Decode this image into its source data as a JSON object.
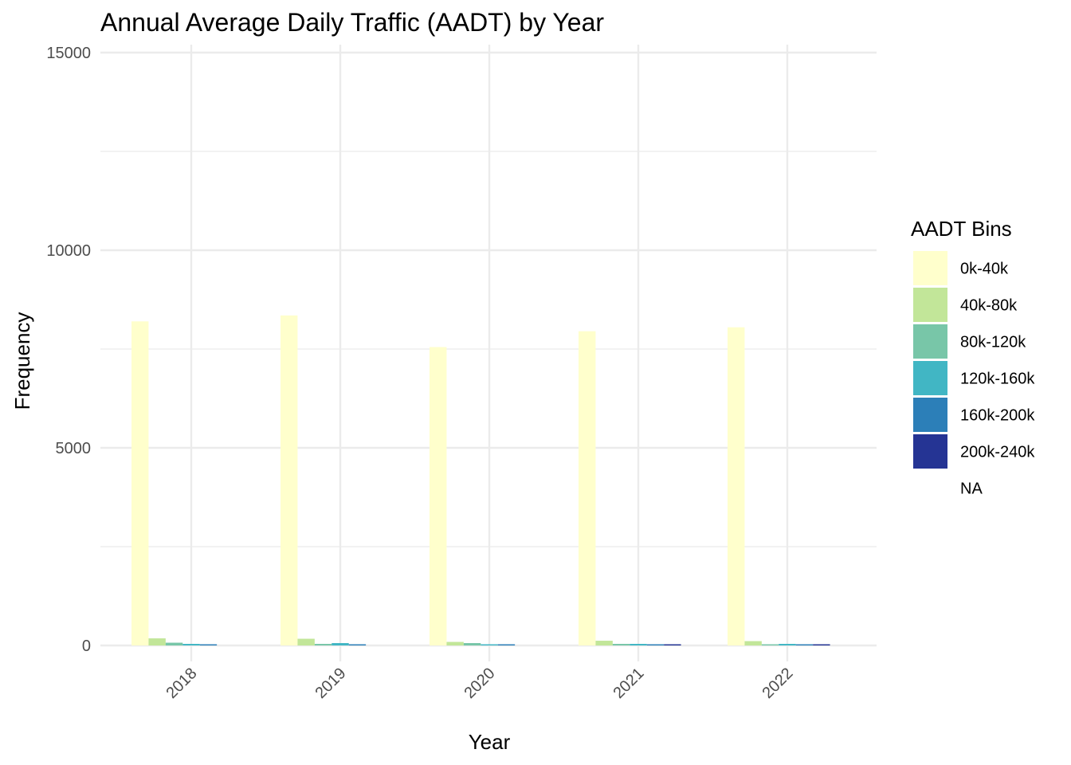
{
  "chart_data": {
    "type": "bar",
    "title": "Annual Average Daily Traffic (AADT) by Year",
    "xlabel": "Year",
    "ylabel": "Frequency",
    "categories": [
      "2018",
      "2019",
      "2020",
      "2021",
      "2022"
    ],
    "ylim": [
      -600,
      15000
    ],
    "yticks": [
      0,
      5000,
      10000,
      15000
    ],
    "ytick_labels": [
      "0",
      "5000",
      "10000",
      "15000"
    ],
    "grid": true,
    "legend": {
      "title": "AADT Bins",
      "position": "right",
      "entries": [
        "0k-40k",
        "40k-80k",
        "80k-120k",
        "120k-160k",
        "160k-200k",
        "200k-240k",
        "NA"
      ]
    },
    "series": [
      {
        "name": "0k-40k",
        "color": "#FFFFCC",
        "values": [
          8200,
          8350,
          7550,
          7950,
          8050
        ]
      },
      {
        "name": "40k-80k",
        "color": "#C2E699",
        "values": [
          180,
          170,
          90,
          120,
          110
        ]
      },
      {
        "name": "80k-120k",
        "color": "#78C6A8",
        "values": [
          70,
          40,
          60,
          40,
          20
        ]
      },
      {
        "name": "120k-160k",
        "color": "#41B6C4",
        "values": [
          40,
          60,
          30,
          40,
          40
        ]
      },
      {
        "name": "160k-200k",
        "color": "#2C7FB8",
        "values": [
          10,
          10,
          20,
          10,
          20
        ]
      },
      {
        "name": "200k-240k",
        "color": "#253494",
        "values": [
          0,
          0,
          0,
          20,
          10
        ]
      },
      {
        "name": "NA",
        "color": "#FFFFFF",
        "values": [
          0,
          0,
          0,
          0,
          0
        ]
      }
    ]
  }
}
